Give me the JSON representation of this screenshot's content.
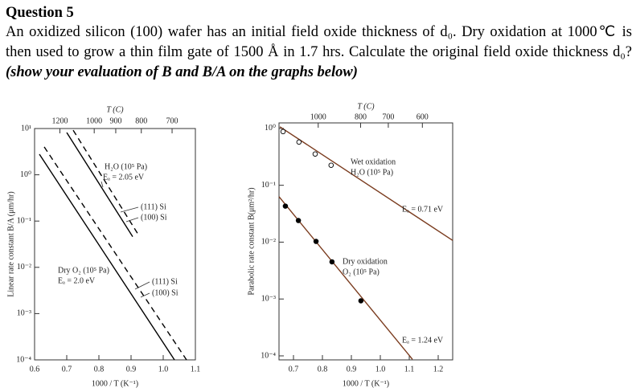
{
  "header": {
    "title": "Question 5"
  },
  "question": {
    "text": "An oxidized silicon (100) wafer has an initial field oxide thickness of d₀. Dry oxidation at 1000℃ is then used to grow a thin film gate of 1500 Å in 1.7 hrs. Calculate the original field oxide thickness d₀? ",
    "emphasis": "(show your evaluation of B and B/A on the graphs below)"
  },
  "chart_data": [
    {
      "type": "line",
      "log_y": true,
      "color": "#000000",
      "xlabel": "1000 / T (K⁻¹)",
      "ylabel": "Linear rate constant B/A (μm/hr)",
      "xlim": [
        0.6,
        1.1
      ],
      "xticks": [
        0.6,
        0.7,
        0.8,
        0.9,
        {
          "value": 1.0,
          "label": "1.0"
        },
        1.1
      ],
      "ylim": [
        0.0001,
        10
      ],
      "yticks": [
        {
          "value": 0.0001,
          "label": "10⁻⁴"
        },
        {
          "value": 0.001,
          "label": "10⁻³"
        },
        {
          "value": 0.01,
          "label": "10⁻²"
        },
        {
          "value": 0.1,
          "label": "10⁻¹"
        },
        {
          "value": 1,
          "label": "10⁰"
        },
        {
          "value": 10,
          "label": "10¹"
        }
      ],
      "top_axis": {
        "label": "T (C)",
        "ticks": [
          1200,
          1000,
          900,
          800,
          700
        ]
      },
      "series": [
        {
          "name": "(111) Si",
          "dashed": false,
          "x": [
            0.7,
            0.905
          ],
          "values": [
            8.2,
            0.046
          ]
        },
        {
          "name": "(100) Si",
          "dashed": true,
          "x": [
            0.72,
            0.9225
          ],
          "values": [
            9.2,
            0.051
          ]
        },
        {
          "name": "(111) Si",
          "dashed": false,
          "x": [
            0.615,
            1.035
          ],
          "values": [
            2.78,
            0.0001
          ]
        },
        {
          "name": "(100) Si",
          "dashed": true,
          "x": [
            0.63,
            1.0725
          ],
          "values": [
            4.0,
            0.0001
          ]
        }
      ],
      "annotations": [
        "H₂O (10⁵ Pa)",
        "Eₐ = 2.05 eV",
        "Dry O₂ (10⁵ Pa)",
        "Eₐ = 2.0 eV"
      ]
    },
    {
      "type": "scatter",
      "log_y": true,
      "color": "#7a3b1e",
      "xlabel": "1000 / T (K⁻¹)",
      "ylabel": "Parabolic rate constant B(μm²/hr)",
      "xlim": [
        0.65,
        1.25
      ],
      "xticks": [
        0.7,
        0.8,
        0.9,
        {
          "value": 1.0,
          "label": "1.0"
        },
        1.1,
        1.2
      ],
      "ylim": [
        8.5e-05,
        1.25
      ],
      "yticks": [
        {
          "value": 0.0001,
          "label": "10⁻⁴"
        },
        {
          "value": 0.001,
          "label": "10⁻³"
        },
        {
          "value": 0.01,
          "label": "10⁻²"
        },
        {
          "value": 0.1,
          "label": "10⁻¹"
        },
        {
          "value": 1,
          "label": "10⁰"
        }
      ],
      "top_axis": {
        "label": "T (C)",
        "ticks": [
          1000,
          800,
          700,
          600
        ]
      },
      "series": [
        {
          "name": "Wet oxidation",
          "marker": "open",
          "x": [
            0.664,
            0.719,
            0.775,
            0.83
          ],
          "values": [
            0.88,
            0.575,
            0.355,
            0.225
          ],
          "line_x": [
            0.653,
            1.25
          ],
          "line_values": [
            1.07,
            0.0107
          ]
        },
        {
          "name": "Dry oxidation",
          "marker": "filled",
          "x": [
            0.672,
            0.717,
            0.778,
            0.833,
            0.933
          ],
          "values": [
            0.043,
            0.024,
            0.0103,
            0.0045,
            0.00093
          ],
          "line_x": [
            0.65,
            1.111
          ],
          "line_values": [
            0.063,
            8.7e-05
          ]
        }
      ],
      "annotations": [
        "H₂O (10⁵ Pa)",
        "Eₐ = 0.71 eV",
        "O₂ (10⁵ Pa)",
        "Eₐ = 1.24 eV"
      ]
    }
  ]
}
